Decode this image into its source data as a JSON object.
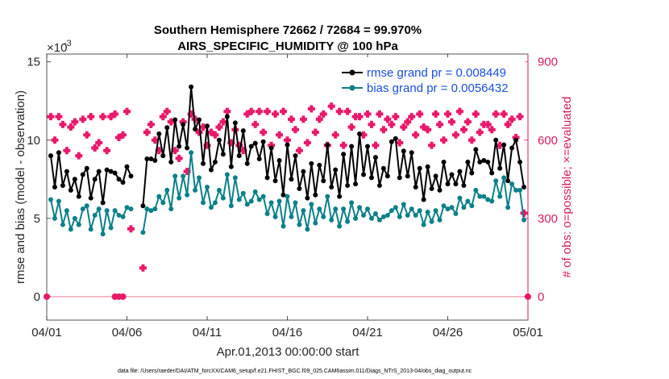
{
  "chart_data": {
    "type": "line",
    "title": [
      "Southern Hemisphere 72662 / 72684 = 99.970%",
      "AIRS_SPECIFIC_HUMIDITY @ 100 hPa"
    ],
    "xlabel": "Apr.01,2013 00:00:00 start",
    "ylabel": "rmse and bias (model - observation)",
    "y2label": "# of obs: o=possible; ×=evaluated",
    "yscale_label": "×10",
    "yscale_exp": "-3",
    "xlim": [
      0,
      30
    ],
    "ylim": [
      -1.5,
      15.5
    ],
    "y2lim": [
      -90,
      930
    ],
    "x_ticks": [
      0,
      5,
      10,
      15,
      20,
      25,
      30
    ],
    "x_tick_labels": [
      "04/01",
      "04/06",
      "04/11",
      "04/16",
      "04/21",
      "04/26",
      "05/01"
    ],
    "y_ticks": [
      0,
      5,
      10,
      15
    ],
    "y_tick_labels": [
      "0",
      "5",
      "10",
      "15"
    ],
    "y2_ticks": [
      0,
      300,
      600,
      900
    ],
    "y2_tick_labels": [
      "0",
      "300",
      "600",
      "900"
    ],
    "footnote": "data file: /Users/raeder/DAI/ATM_forcXX/CAM6_setup/f.e21.FHIST_BGC.f09_025.CAM6assim.011/Diags_NTrS_2013-04/obs_diag_output.nc",
    "series": [
      {
        "name": "rmse grand pr = 0.008449",
        "color": "#000000",
        "x": [
          0.25,
          0.5,
          0.75,
          1,
          1.25,
          1.5,
          1.75,
          2,
          2.25,
          2.5,
          2.75,
          3,
          3.25,
          3.5,
          3.75,
          4,
          4.25,
          4.5,
          4.75,
          5,
          5.25,
          6,
          6.25,
          6.5,
          6.75,
          7,
          7.25,
          7.5,
          7.75,
          8,
          8.25,
          8.5,
          8.75,
          9,
          9.25,
          9.5,
          9.75,
          10,
          10.25,
          10.5,
          10.75,
          11,
          11.25,
          11.5,
          11.75,
          12,
          12.25,
          12.5,
          12.75,
          13,
          13.25,
          13.5,
          13.75,
          14,
          14.25,
          14.5,
          14.75,
          15,
          15.25,
          15.5,
          15.75,
          16,
          16.25,
          16.5,
          16.75,
          17,
          17.25,
          17.5,
          17.75,
          18,
          18.25,
          18.5,
          18.75,
          19,
          19.25,
          19.5,
          19.75,
          20,
          20.25,
          20.5,
          20.75,
          21,
          21.25,
          21.5,
          21.75,
          22,
          22.25,
          22.5,
          22.75,
          23,
          23.25,
          23.5,
          23.75,
          24,
          24.25,
          24.5,
          24.75,
          25,
          25.25,
          25.5,
          25.75,
          26,
          26.25,
          26.5,
          26.75,
          27,
          27.25,
          27.5,
          27.75,
          28,
          28.25,
          28.5,
          28.75,
          29,
          29.25,
          29.5,
          29.75
        ],
        "values": [
          9.0,
          7.0,
          9.2,
          7.1,
          8.0,
          6.8,
          7.5,
          6.4,
          7.8,
          8.2,
          6.3,
          7.5,
          8.0,
          6.0,
          8.1,
          8.0,
          7.9,
          7.5,
          7.3,
          8.3,
          7.7,
          5.8,
          8.8,
          8.8,
          8.7,
          10.4,
          9.0,
          10.8,
          8.6,
          11.3,
          9.6,
          11.0,
          9.5,
          13.4,
          10.7,
          11.3,
          8.5,
          10.9,
          8.1,
          8.6,
          10.0,
          9.1,
          11.5,
          8.3,
          11.1,
          9.0,
          10.6,
          8.5,
          9.6,
          9.8,
          8.8,
          9.9,
          7.6,
          9.5,
          7.4,
          8.7,
          6.5,
          9.7,
          7.5,
          9.0,
          6.9,
          8.0,
          6.3,
          8.5,
          6.5,
          8.4,
          7.4,
          9.7,
          7.0,
          8.1,
          6.4,
          9.1,
          7.1,
          9.6,
          7.2,
          10.4,
          7.8,
          9.6,
          7.6,
          8.9,
          7.1,
          8.2,
          7.7,
          9.9,
          10.1,
          7.6,
          9.3,
          7.7,
          9.2,
          7.0,
          8.2,
          6.2,
          8.3,
          6.9,
          7.7,
          6.8,
          8.6,
          7.2,
          7.8,
          7.2,
          8.0,
          7.1,
          8.6,
          7.9,
          9.4,
          8.6,
          8.7,
          8.6,
          7.9,
          10.0,
          8.2,
          9.7,
          7.4,
          9.5,
          10.0,
          8.6,
          7.0
        ]
      },
      {
        "name": "bias grand pr = 0.0056432",
        "color": "#0b8088",
        "x": [
          0.25,
          0.5,
          0.75,
          1,
          1.25,
          1.5,
          1.75,
          2,
          2.25,
          2.5,
          2.75,
          3,
          3.25,
          3.5,
          3.75,
          4,
          4.25,
          4.5,
          4.75,
          5,
          5.25,
          6,
          6.25,
          6.5,
          6.75,
          7,
          7.25,
          7.5,
          7.75,
          8,
          8.25,
          8.5,
          8.75,
          9,
          9.25,
          9.5,
          9.75,
          10,
          10.25,
          10.5,
          10.75,
          11,
          11.25,
          11.5,
          11.75,
          12,
          12.25,
          12.5,
          12.75,
          13,
          13.25,
          13.5,
          13.75,
          14,
          14.25,
          14.5,
          14.75,
          15,
          15.25,
          15.5,
          15.75,
          16,
          16.25,
          16.5,
          16.75,
          17,
          17.25,
          17.5,
          17.75,
          18,
          18.25,
          18.5,
          18.75,
          19,
          19.25,
          19.5,
          19.75,
          20,
          20.25,
          20.5,
          20.75,
          21,
          21.25,
          21.5,
          21.75,
          22,
          22.25,
          22.5,
          22.75,
          23,
          23.25,
          23.5,
          23.75,
          24,
          24.25,
          24.5,
          24.75,
          25,
          25.25,
          25.5,
          25.75,
          26,
          26.25,
          26.5,
          26.75,
          27,
          27.25,
          27.5,
          27.75,
          28,
          28.25,
          28.5,
          28.75,
          29,
          29.25,
          29.5,
          29.75
        ],
        "values": [
          6.2,
          5.0,
          6.1,
          4.6,
          5.5,
          4.3,
          5.0,
          4.6,
          5.6,
          5.8,
          4.3,
          5.2,
          5.6,
          4.0,
          5.5,
          4.4,
          5.5,
          5.2,
          5.1,
          5.7,
          5.6,
          4.1,
          5.6,
          5.5,
          5.6,
          6.4,
          6.0,
          6.8,
          5.6,
          7.7,
          6.3,
          7.7,
          6.5,
          9.2,
          6.8,
          7.6,
          6.0,
          7.0,
          5.7,
          6.0,
          6.8,
          6.3,
          7.8,
          5.8,
          7.6,
          6.2,
          6.6,
          5.9,
          6.1,
          6.7,
          6.2,
          6.4,
          5.3,
          6.0,
          5.1,
          6.1,
          4.5,
          6.4,
          5.1,
          6.0,
          4.6,
          5.5,
          4.3,
          5.9,
          4.7,
          5.6,
          5.1,
          6.4,
          4.9,
          5.6,
          4.5,
          5.6,
          4.8,
          6.0,
          5.0,
          5.7,
          5.2,
          5.6,
          5.0,
          5.3,
          4.9,
          5.1,
          5.2,
          5.5,
          5.7,
          5.1,
          5.9,
          5.2,
          5.6,
          5.2,
          5.5,
          4.6,
          5.4,
          4.8,
          5.5,
          4.9,
          5.8,
          5.6,
          5.7,
          5.3,
          6.3,
          5.7,
          6.1,
          5.8,
          6.8,
          6.4,
          6.4,
          6.2,
          6.1,
          7.4,
          6.4,
          7.6,
          5.7,
          7.2,
          6.8,
          6.8,
          4.9
        ]
      },
      {
        "name": "# of obs possible",
        "color": "#e8196b",
        "axis": "right",
        "marker": "circle",
        "x": [
          0,
          4.25,
          4.5,
          4.75,
          30
        ],
        "values": [
          0,
          0,
          0,
          0,
          0
        ]
      },
      {
        "name": "# of obs evaluated",
        "color": "#e8196b",
        "axis": "right",
        "marker": "cross",
        "x": [
          0.25,
          0.5,
          0.75,
          1,
          1.25,
          1.5,
          1.75,
          2,
          2.25,
          2.5,
          2.75,
          3,
          3.25,
          3.5,
          3.75,
          4,
          4.25,
          4.5,
          4.75,
          5,
          5.25,
          6,
          6.25,
          6.5,
          6.75,
          7,
          7.25,
          7.5,
          7.75,
          8,
          8.25,
          8.5,
          8.75,
          9,
          9.25,
          9.5,
          9.75,
          10,
          10.25,
          10.5,
          10.75,
          11,
          11.25,
          11.5,
          11.75,
          12,
          12.25,
          12.5,
          12.75,
          13,
          13.25,
          13.5,
          13.75,
          14,
          14.25,
          14.5,
          14.75,
          15,
          15.25,
          15.5,
          15.75,
          16,
          16.25,
          16.5,
          16.75,
          17,
          17.25,
          17.5,
          17.75,
          18,
          18.25,
          18.5,
          18.75,
          19,
          19.25,
          19.5,
          19.75,
          20,
          20.25,
          20.5,
          20.75,
          21,
          21.25,
          21.5,
          21.75,
          22,
          22.25,
          22.5,
          22.75,
          23,
          23.25,
          23.5,
          23.75,
          24,
          24.25,
          24.5,
          24.75,
          25,
          25.25,
          25.5,
          25.75,
          26,
          26.25,
          26.5,
          26.75,
          27,
          27.25,
          27.5,
          27.75,
          28,
          28.25,
          28.5,
          28.75,
          29,
          29.25,
          29.5,
          29.75
        ],
        "values": [
          690,
          600,
          690,
          660,
          560,
          650,
          670,
          540,
          680,
          620,
          690,
          570,
          590,
          690,
          560,
          690,
          700,
          610,
          620,
          710,
          260,
          110,
          630,
          660,
          600,
          560,
          690,
          710,
          670,
          560,
          530,
          670,
          480,
          700,
          680,
          630,
          650,
          580,
          630,
          620,
          650,
          670,
          710,
          590,
          640,
          580,
          560,
          700,
          710,
          660,
          710,
          630,
          710,
          580,
          700,
          620,
          710,
          600,
          680,
          640,
          560,
          680,
          590,
          720,
          630,
          680,
          700,
          580,
          730,
          620,
          710,
          580,
          710,
          650,
          690,
          690,
          620,
          700,
          660,
          580,
          700,
          640,
          680,
          660,
          690,
          590,
          650,
          670,
          690,
          620,
          700,
          650,
          640,
          580,
          700,
          660,
          600,
          700,
          670,
          620,
          710,
          640,
          670,
          600,
          700,
          630,
          660,
          660,
          640,
          700,
          580,
          700,
          660,
          680,
          610,
          690,
          320
        ]
      }
    ]
  }
}
